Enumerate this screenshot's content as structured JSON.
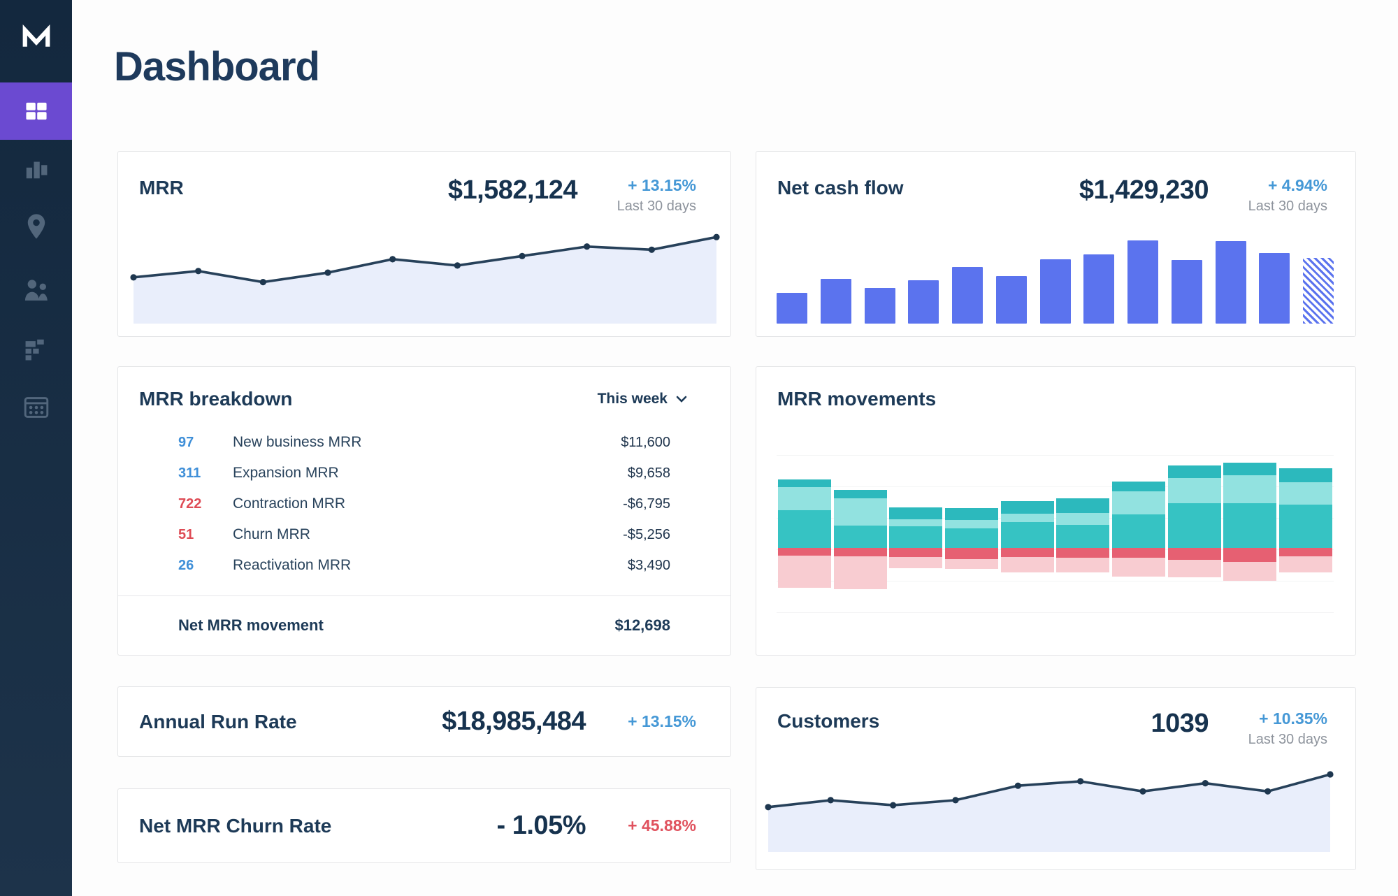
{
  "page": {
    "title": "Dashboard"
  },
  "sidebar": {
    "logo_icon": "chartmogul-m-logo",
    "items": [
      {
        "id": "dashboard",
        "icon": "dashboard-grid-icon",
        "active": true
      },
      {
        "id": "charts",
        "icon": "bar-chart-icon",
        "active": false
      },
      {
        "id": "map",
        "icon": "map-pin-icon",
        "active": false
      },
      {
        "id": "customers",
        "icon": "users-icon",
        "active": false
      },
      {
        "id": "segments",
        "icon": "segment-blocks-icon",
        "active": false
      },
      {
        "id": "data",
        "icon": "data-table-icon",
        "active": false
      }
    ]
  },
  "cards": {
    "mrr": {
      "title": "MRR",
      "value": "$1,582,124",
      "delta": "+ 13.15%",
      "period": "Last 30 days"
    },
    "net_cash_flow": {
      "title": "Net cash flow",
      "value": "$1,429,230",
      "delta": "+ 4.94%",
      "period": "Last 30 days"
    },
    "mrr_breakdown": {
      "title": "MRR breakdown",
      "filter_label": "This week",
      "rows": [
        {
          "count": "97",
          "count_color": "blue",
          "label": "New business MRR",
          "value": "$11,600"
        },
        {
          "count": "311",
          "count_color": "blue",
          "label": "Expansion MRR",
          "value": "$9,658"
        },
        {
          "count": "722",
          "count_color": "red",
          "label": "Contraction MRR",
          "value": "-$6,795"
        },
        {
          "count": "51",
          "count_color": "red",
          "label": "Churn MRR",
          "value": "-$5,256"
        },
        {
          "count": "26",
          "count_color": "blue",
          "label": "Reactivation MRR",
          "value": "$3,490"
        }
      ],
      "footer": {
        "label": "Net MRR movement",
        "value": "$12,698"
      }
    },
    "mrr_movements": {
      "title": "MRR movements"
    },
    "annual_run_rate": {
      "title": "Annual Run Rate",
      "value": "$18,985,484",
      "delta": "+ 13.15%"
    },
    "net_mrr_churn_rate": {
      "title": "Net MRR Churn Rate",
      "value": "- 1.05%",
      "delta": "+ 45.88%"
    },
    "customers": {
      "title": "Customers",
      "value": "1039",
      "delta": "+ 10.35%",
      "period": "Last 30 days"
    }
  },
  "chart_data": [
    {
      "id": "mrr_trend",
      "type": "line",
      "title": "MRR sparkline (last 30 days)",
      "x": [
        1,
        2,
        3,
        4,
        5,
        6,
        7,
        8,
        9,
        10
      ],
      "points": [
        0.32,
        0.4,
        0.26,
        0.38,
        0.55,
        0.47,
        0.59,
        0.71,
        0.67,
        0.83
      ],
      "ylim": [
        0,
        1
      ],
      "grid": false,
      "legend": "none",
      "axes": "hidden",
      "style": "line-with-dots-and-area"
    },
    {
      "id": "net_cash_flow",
      "type": "bar",
      "title": "Net cash flow sparkbars (last 30 days)",
      "categories": [
        1,
        2,
        3,
        4,
        5,
        6,
        7,
        8,
        9,
        10,
        11,
        12,
        13
      ],
      "values": [
        0.31,
        0.45,
        0.36,
        0.44,
        0.57,
        0.48,
        0.65,
        0.7,
        0.84,
        0.64,
        0.83,
        0.71,
        0.66
      ],
      "striped_last": true,
      "ylim": [
        0,
        1
      ],
      "grid": false,
      "legend": "none",
      "axes": "hidden"
    },
    {
      "id": "mrr_movements",
      "type": "bar",
      "subtype": "diverging-stacked",
      "title": "MRR movements stacked bars",
      "segments_up_order": [
        "new_business",
        "expansion",
        "reactivation"
      ],
      "segments_down_order": [
        "contraction",
        "churn"
      ],
      "baseline_from_top": 133,
      "bars": [
        {
          "up": [
            54,
            33,
            11
          ],
          "down": [
            11,
            46
          ]
        },
        {
          "up": [
            32,
            39,
            12
          ],
          "down": [
            12,
            47
          ]
        },
        {
          "up": [
            31,
            10,
            17
          ],
          "down": [
            13,
            16
          ]
        },
        {
          "up": [
            28,
            12,
            17
          ],
          "down": [
            16,
            14
          ]
        },
        {
          "up": [
            37,
            12,
            18
          ],
          "down": [
            13,
            22
          ]
        },
        {
          "up": [
            33,
            17,
            21
          ],
          "down": [
            14,
            21
          ]
        },
        {
          "up": [
            48,
            33,
            14
          ],
          "down": [
            14,
            27
          ]
        },
        {
          "up": [
            64,
            36,
            18
          ],
          "down": [
            17,
            25
          ]
        },
        {
          "up": [
            64,
            40,
            18
          ],
          "down": [
            20,
            27
          ]
        },
        {
          "up": [
            62,
            32,
            20
          ],
          "down": [
            12,
            23
          ]
        }
      ],
      "grid": true,
      "legend": "none",
      "axes": "hidden"
    },
    {
      "id": "customers_trend",
      "type": "line",
      "title": "Customers sparkline (last 30 days)",
      "x": [
        1,
        2,
        3,
        4,
        5,
        6,
        7,
        8,
        9,
        10
      ],
      "points": [
        0.38,
        0.49,
        0.41,
        0.49,
        0.72,
        0.79,
        0.63,
        0.76,
        0.63,
        0.9
      ],
      "ylim": [
        0,
        1
      ],
      "grid": false,
      "legend": "none",
      "axes": "hidden",
      "style": "line-with-dots-and-area"
    }
  ],
  "colors": {
    "sidebar_bg": "#172d44",
    "sidebar_active": "#6b4ad1",
    "icon_muted": "#5d7186",
    "heading_navy": "#1d3a57",
    "value_navy": "#16324e",
    "delta_blue": "#4598d6",
    "delta_red": "#e0525e",
    "count_blue": "#3f8fd8",
    "count_red": "#de4b55",
    "period_gray": "#8d939c",
    "card_border": "#e4e5e7",
    "line_stroke": "#27415a",
    "line_dot": "#1e374f",
    "line_area": "#e9eefb",
    "cash_bar_blue": "#5b73ee",
    "movement_new_business": "#36c3c3",
    "movement_expansion": "#92e2e0",
    "movement_reactivation": "#2cb9bd",
    "movement_contraction": "#e66072",
    "movement_churn": "#f8ccd1",
    "gridline": "#f3f4f5"
  }
}
